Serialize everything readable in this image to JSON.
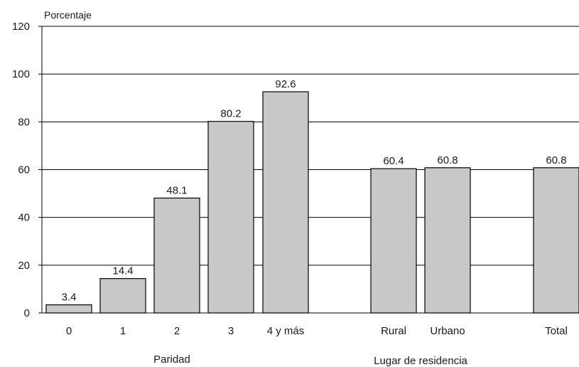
{
  "chart_data": {
    "type": "bar",
    "ylabel": "Porcentaje",
    "ylim": [
      0,
      120
    ],
    "yticks": [
      0,
      20,
      40,
      60,
      80,
      100,
      120
    ],
    "grid": true,
    "bar_color": "#c8c8c8",
    "categories": [
      "0",
      "1",
      "2",
      "3",
      "4 y más",
      "Rural",
      "Urbano",
      "Total"
    ],
    "values": [
      3.4,
      14.4,
      48.1,
      80.2,
      92.6,
      60.4,
      60.8,
      60.8
    ],
    "data_labels": [
      "3.4",
      "14.4",
      "48.1",
      "80.2",
      "92.6",
      "60.4",
      "60.8",
      "60.8"
    ],
    "groups": [
      {
        "label": "Paridad",
        "categories": [
          "0",
          "1",
          "2",
          "3",
          "4 y más"
        ]
      },
      {
        "label": "Lugar de residencia",
        "categories": [
          "Rural",
          "Urbano"
        ]
      }
    ]
  }
}
